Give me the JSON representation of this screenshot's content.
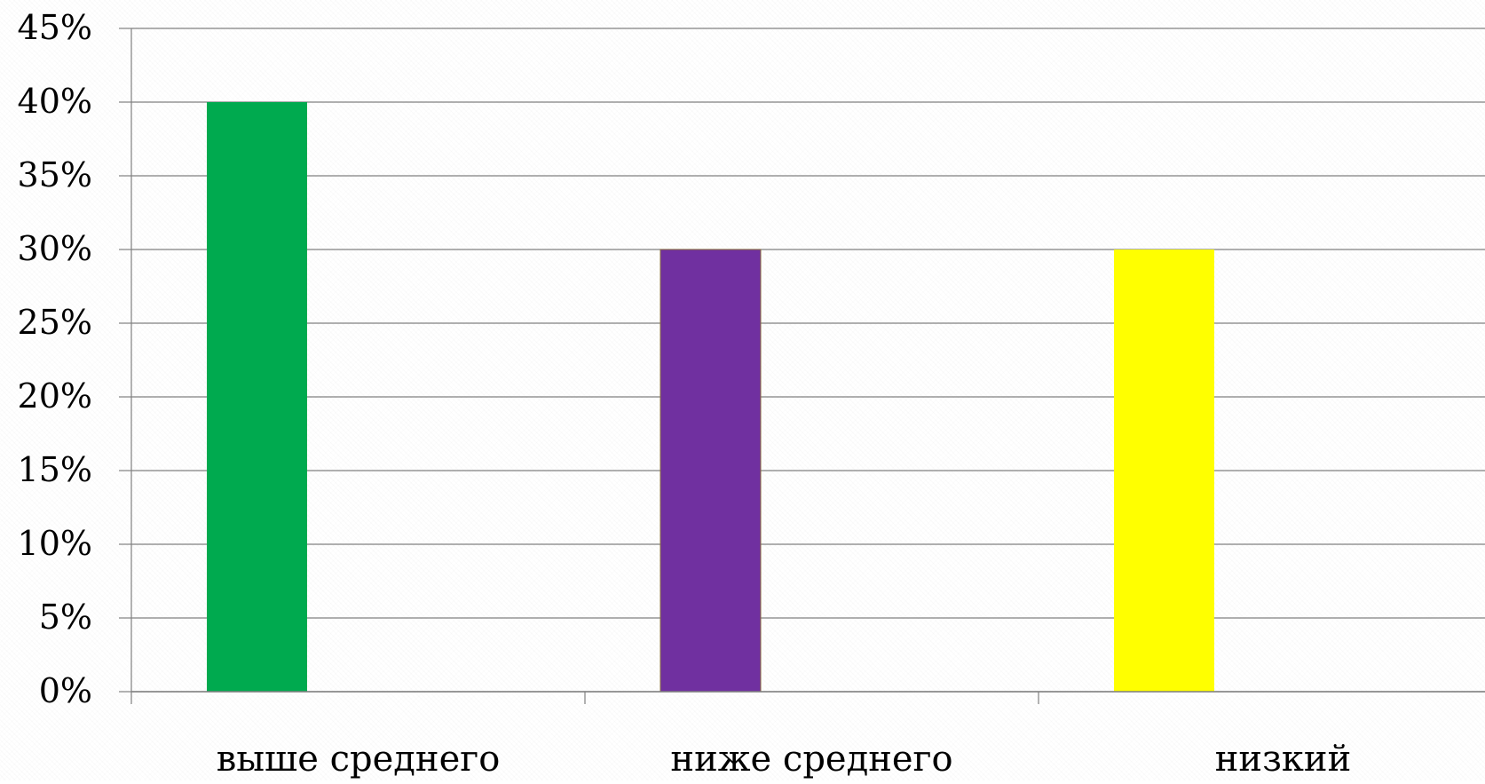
{
  "chart_data": {
    "type": "bar",
    "title": "",
    "xlabel": "",
    "ylabel": "",
    "categories": [
      "выше среднего",
      "ниже среднего",
      "низкий"
    ],
    "values": [
      40,
      30,
      30
    ],
    "value_unit": "%",
    "colors": [
      "#00AA4F",
      "#7030A0",
      "#FFFF00"
    ],
    "ylim": [
      0,
      45
    ],
    "ytick_step": 5,
    "yticks": [
      "0%",
      "5%",
      "10%",
      "15%",
      "20%",
      "25%",
      "30%",
      "35%",
      "40%",
      "45%"
    ],
    "grid": true,
    "legend": "none"
  }
}
